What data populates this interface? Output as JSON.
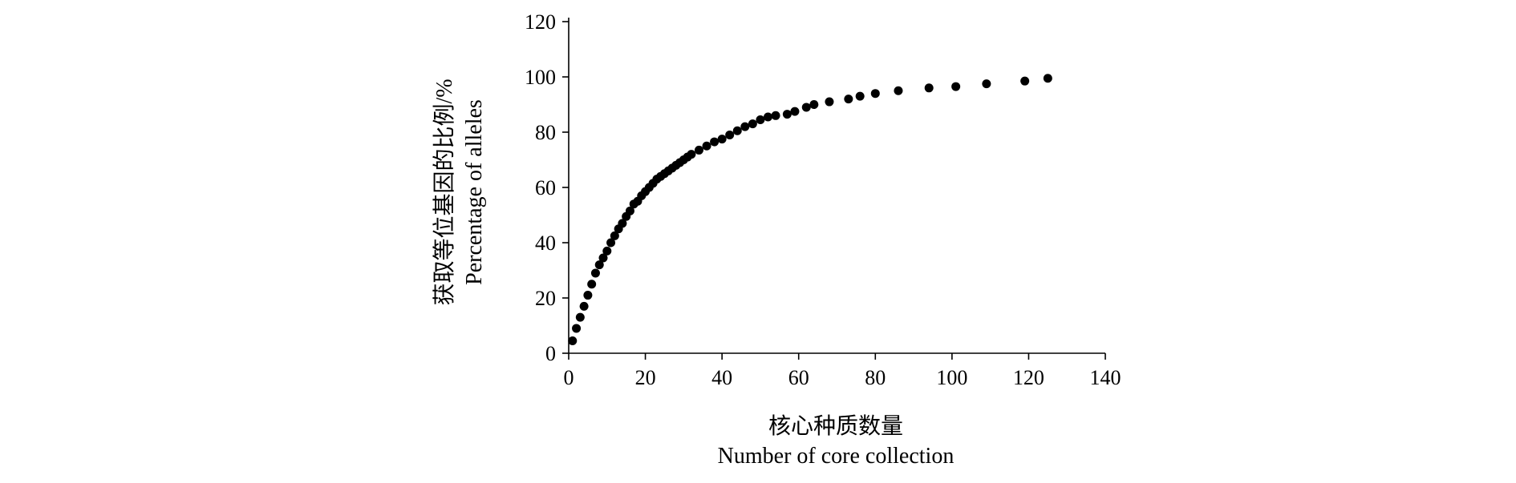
{
  "chart_data": {
    "type": "scatter",
    "title": "",
    "xlabel": [
      "核心种质数量",
      "Number of core collection"
    ],
    "ylabel": [
      "获取等位基因的比例/%",
      "Percentage of alleles"
    ],
    "xlim": [
      0,
      140
    ],
    "ylim": [
      0,
      120
    ],
    "xticks": [
      0,
      20,
      40,
      60,
      80,
      100,
      120,
      140
    ],
    "yticks": [
      0,
      20,
      40,
      60,
      80,
      100,
      120
    ],
    "grid": false,
    "legend": "none",
    "marker_color": "#000000",
    "points": [
      [
        1,
        4.5
      ],
      [
        2,
        9
      ],
      [
        3,
        13
      ],
      [
        4,
        17
      ],
      [
        5,
        21
      ],
      [
        6,
        25
      ],
      [
        7,
        29
      ],
      [
        8,
        32
      ],
      [
        9,
        34.5
      ],
      [
        10,
        37
      ],
      [
        11,
        40
      ],
      [
        12,
        42.5
      ],
      [
        13,
        45
      ],
      [
        14,
        47
      ],
      [
        15,
        49.5
      ],
      [
        16,
        51.5
      ],
      [
        17,
        54
      ],
      [
        18,
        55
      ],
      [
        19,
        57
      ],
      [
        20,
        58.5
      ],
      [
        21,
        60
      ],
      [
        22,
        61.5
      ],
      [
        23,
        63
      ],
      [
        24,
        64
      ],
      [
        25,
        65
      ],
      [
        26,
        66
      ],
      [
        27,
        67
      ],
      [
        28,
        68
      ],
      [
        29,
        69
      ],
      [
        30,
        70
      ],
      [
        31,
        71
      ],
      [
        32,
        72
      ],
      [
        34,
        73.5
      ],
      [
        36,
        75
      ],
      [
        38,
        76.5
      ],
      [
        40,
        77.5
      ],
      [
        42,
        79
      ],
      [
        44,
        80.5
      ],
      [
        46,
        82
      ],
      [
        48,
        83
      ],
      [
        50,
        84.5
      ],
      [
        52,
        85.5
      ],
      [
        54,
        86
      ],
      [
        57,
        86.5
      ],
      [
        59,
        87.5
      ],
      [
        62,
        89
      ],
      [
        64,
        90
      ],
      [
        68,
        91
      ],
      [
        73,
        92
      ],
      [
        76,
        93
      ],
      [
        80,
        94
      ],
      [
        86,
        95
      ],
      [
        94,
        96
      ],
      [
        101,
        96.5
      ],
      [
        109,
        97.5
      ],
      [
        119,
        98.5
      ],
      [
        125,
        99.5
      ]
    ]
  }
}
